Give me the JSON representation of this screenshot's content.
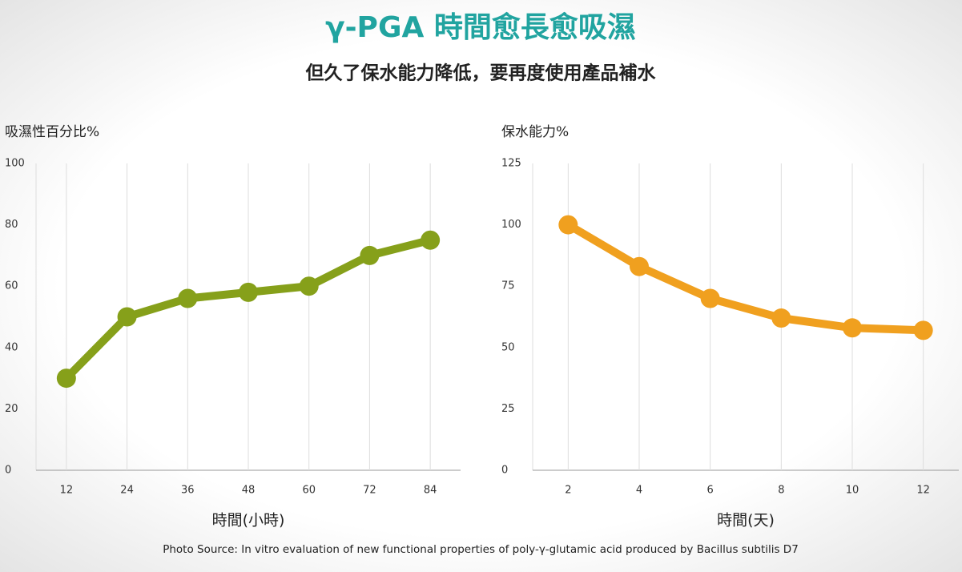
{
  "title": "γ-PGA 時間愈長愈吸濕",
  "subtitle": "但久了保水能力降低，要再度使用產品補水",
  "source": "Photo Source: In vitro evaluation of new functional properties of poly-γ-glutamic acid produced by Bacillus subtilis D7",
  "chart_data": [
    {
      "type": "line",
      "y_label": "吸濕性百分比%",
      "x_label": "時間(小時)",
      "x": [
        12,
        24,
        36,
        48,
        60,
        72,
        84
      ],
      "values": [
        30,
        50,
        56,
        58,
        60,
        70,
        75
      ],
      "color": "#86a01a",
      "xlim": [
        6,
        90
      ],
      "xticks": [
        12,
        24,
        36,
        48,
        60,
        72,
        84
      ],
      "ylim": [
        0,
        100
      ],
      "yticks": [
        0,
        20,
        40,
        60,
        80,
        100
      ],
      "grid": "x"
    },
    {
      "type": "line",
      "y_label": "保水能力%",
      "x_label": "時間(天)",
      "x": [
        2,
        4,
        6,
        8,
        10,
        12
      ],
      "values": [
        100,
        83,
        70,
        62,
        58,
        57
      ],
      "color": "#f0a01f",
      "xlim": [
        1,
        13
      ],
      "xticks": [
        2,
        4,
        6,
        8,
        10,
        12
      ],
      "ylim": [
        0,
        125
      ],
      "yticks": [
        0,
        25,
        50,
        75,
        100,
        125
      ],
      "grid": "x"
    }
  ]
}
